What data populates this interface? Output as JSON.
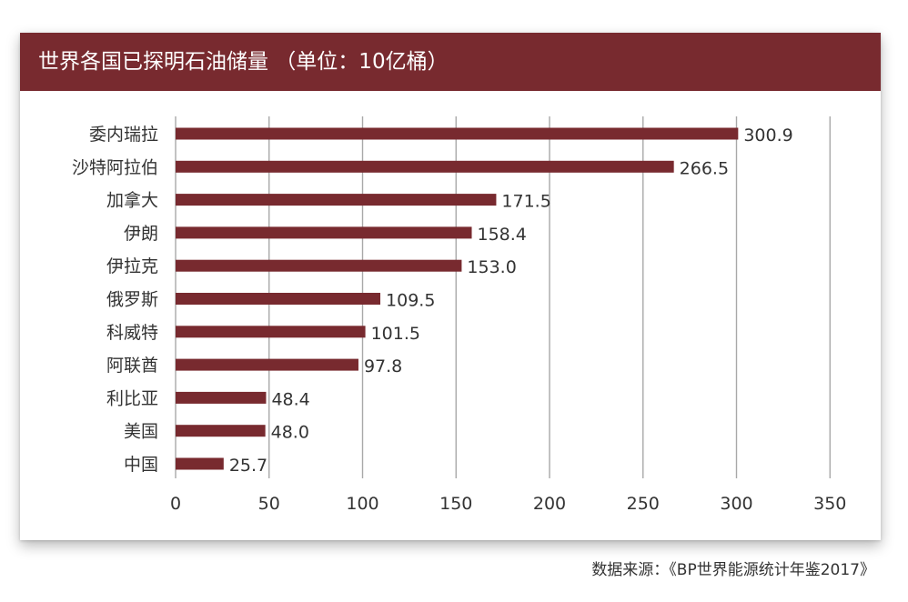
{
  "title": "世界各国已探明石油储量 （单位：10亿桶）",
  "source": "数据来源：《BP世界能源统计年鉴2017》",
  "colors": {
    "bar": "#782a2f",
    "title_bg": "#782a2f",
    "grid": "#a8a8a8",
    "text": "#333333"
  },
  "chart_data": {
    "type": "bar",
    "orientation": "horizontal",
    "title": "世界各国已探明石油储量 （单位：10亿桶）",
    "unit": "10亿桶",
    "categories": [
      "委内瑞拉",
      "沙特阿拉伯",
      "加拿大",
      "伊朗",
      "伊拉克",
      "俄罗斯",
      "科威特",
      "阿联酋",
      "利比亚",
      "美国",
      "中国"
    ],
    "values": [
      300.9,
      266.5,
      171.5,
      158.4,
      153.0,
      109.5,
      101.5,
      97.8,
      48.4,
      48.0,
      25.7
    ],
    "value_labels": [
      "300.9",
      "266.5",
      "171.5",
      "158.4",
      "153.0",
      "109.5",
      "101.5",
      "97.8",
      "48.4",
      "48.0",
      "25.7"
    ],
    "xlim": [
      0,
      350
    ],
    "xticks": [
      0,
      50,
      100,
      150,
      200,
      250,
      300,
      350
    ],
    "xtick_labels": [
      "0",
      "50",
      "100",
      "150",
      "200",
      "250",
      "300",
      "350"
    ],
    "grid": "vertical",
    "xlabel": "",
    "ylabel": ""
  }
}
